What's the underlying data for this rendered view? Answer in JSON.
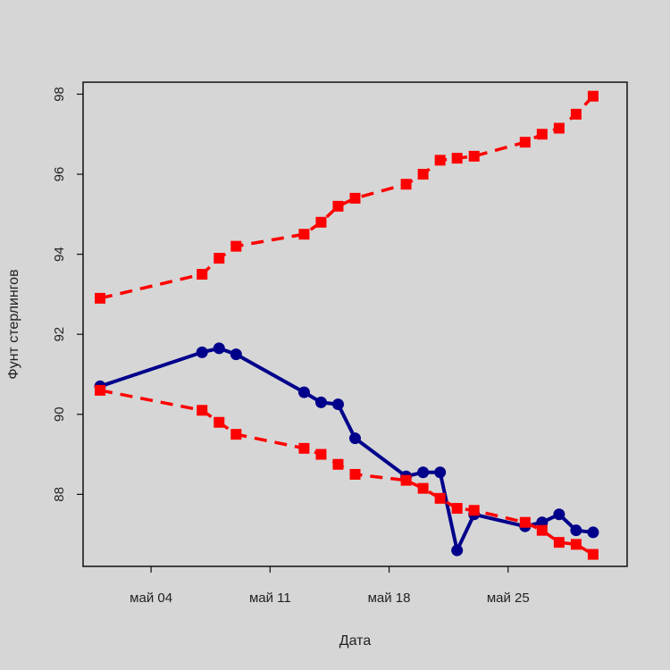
{
  "chart_data": {
    "type": "line",
    "title": "",
    "xlabel": "Дата",
    "ylabel": "Фунт стерлингов",
    "x_ticks": [
      {
        "date": "2020-05-04",
        "label": "май 04"
      },
      {
        "date": "2020-05-11",
        "label": "май 11"
      },
      {
        "date": "2020-05-18",
        "label": "май 18"
      },
      {
        "date": "2020-05-25",
        "label": "май 25"
      }
    ],
    "y_ticks": [
      "88",
      "90",
      "92",
      "94",
      "96",
      "98"
    ],
    "y_tick_values": [
      88,
      90,
      92,
      94,
      96,
      98
    ],
    "xlim": [
      "2020-04-30",
      "2020-06-01"
    ],
    "ylim": [
      86.2,
      98.3
    ],
    "grid": false,
    "colors": {
      "background": "#d6d6d6",
      "primary": "#00008b",
      "bounds": "#ff0000"
    },
    "series": [
      {
        "style": "solid-circle",
        "color": "#00008b",
        "points": [
          [
            "2020-05-01",
            90.7
          ],
          [
            "2020-05-07",
            91.55
          ],
          [
            "2020-05-08",
            91.65
          ],
          [
            "2020-05-09",
            91.5
          ],
          [
            "2020-05-13",
            90.55
          ],
          [
            "2020-05-14",
            90.3
          ],
          [
            "2020-05-15",
            90.25
          ],
          [
            "2020-05-16",
            89.4
          ],
          [
            "2020-05-19",
            88.45
          ],
          [
            "2020-05-20",
            88.55
          ],
          [
            "2020-05-21",
            88.55
          ],
          [
            "2020-05-22",
            86.6
          ],
          [
            "2020-05-23",
            87.5
          ],
          [
            "2020-05-26",
            87.2
          ],
          [
            "2020-05-27",
            87.3
          ],
          [
            "2020-05-28",
            87.5
          ],
          [
            "2020-05-29",
            87.1
          ],
          [
            "2020-05-30",
            87.05
          ]
        ]
      },
      {
        "style": "dashed-square",
        "color": "#ff0000",
        "points": [
          [
            "2020-05-01",
            92.9
          ],
          [
            "2020-05-07",
            93.5
          ],
          [
            "2020-05-08",
            93.9
          ],
          [
            "2020-05-09",
            94.2
          ],
          [
            "2020-05-13",
            94.5
          ],
          [
            "2020-05-14",
            94.8
          ],
          [
            "2020-05-15",
            95.2
          ],
          [
            "2020-05-16",
            95.4
          ],
          [
            "2020-05-19",
            95.75
          ],
          [
            "2020-05-20",
            96.0
          ],
          [
            "2020-05-21",
            96.35
          ],
          [
            "2020-05-22",
            96.4
          ],
          [
            "2020-05-23",
            96.45
          ],
          [
            "2020-05-26",
            96.8
          ],
          [
            "2020-05-27",
            97.0
          ],
          [
            "2020-05-28",
            97.15
          ],
          [
            "2020-05-29",
            97.5
          ],
          [
            "2020-05-30",
            97.95
          ]
        ]
      },
      {
        "style": "dashed-square",
        "color": "#ff0000",
        "points": [
          [
            "2020-05-01",
            90.6
          ],
          [
            "2020-05-07",
            90.1
          ],
          [
            "2020-05-08",
            89.8
          ],
          [
            "2020-05-09",
            89.5
          ],
          [
            "2020-05-13",
            89.15
          ],
          [
            "2020-05-14",
            89.0
          ],
          [
            "2020-05-15",
            88.75
          ],
          [
            "2020-05-16",
            88.5
          ],
          [
            "2020-05-19",
            88.35
          ],
          [
            "2020-05-20",
            88.15
          ],
          [
            "2020-05-21",
            87.9
          ],
          [
            "2020-05-22",
            87.65
          ],
          [
            "2020-05-23",
            87.6
          ],
          [
            "2020-05-26",
            87.3
          ],
          [
            "2020-05-27",
            87.1
          ],
          [
            "2020-05-28",
            86.8
          ],
          [
            "2020-05-29",
            86.75
          ],
          [
            "2020-05-30",
            86.5
          ]
        ]
      }
    ]
  }
}
